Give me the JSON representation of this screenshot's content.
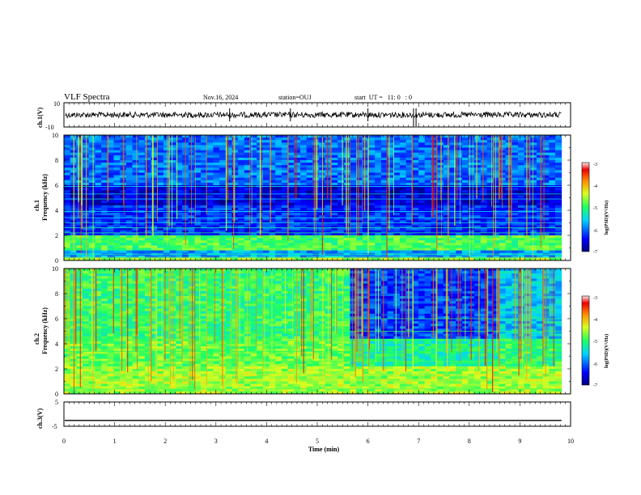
{
  "header": {
    "title": "VLF Spectra",
    "date": "Nov.16, 2024",
    "station": "station=OUJ",
    "start_ut": "start  UT =   11: 0   : 0"
  },
  "colorbar": {
    "label": "log(PSD)(V²/Hz)",
    "ticks": [
      "-3",
      "-4",
      "-5",
      "-6",
      "-7"
    ],
    "range": [
      -7,
      -3
    ]
  },
  "chart_data": [
    {
      "type": "line",
      "title": "",
      "ylabel": "ch.1(V)",
      "ylim": [
        -10,
        10
      ],
      "yticks": [
        "10",
        "-10"
      ],
      "xlim": [
        0,
        10
      ],
      "note": "noisy waveform centered near 0"
    },
    {
      "type": "heatmap",
      "ylabel_line1": "ch.1",
      "ylabel_line2": "Frequency (kHz)",
      "xlim": [
        0,
        10
      ],
      "ylim": [
        0,
        10
      ],
      "yticks": [
        "0",
        "2",
        "4",
        "6",
        "8",
        "10"
      ],
      "data_end_min": 9.82,
      "bands": [
        {
          "from": 0,
          "to": 0.3,
          "level": -4.6
        },
        {
          "from": 0.3,
          "to": 0.7,
          "level": -5.8
        },
        {
          "from": 0.7,
          "to": 2.0,
          "level": -4.9
        },
        {
          "from": 2.0,
          "to": 4.5,
          "level": -6.3
        },
        {
          "from": 4.5,
          "to": 6.0,
          "level": -6.6
        },
        {
          "from": 6.0,
          "to": 10.0,
          "level": -6.0
        }
      ]
    },
    {
      "type": "heatmap",
      "ylabel_line1": "ch.2",
      "ylabel_line2": "Frequency (kHz)",
      "xlim": [
        0,
        10
      ],
      "ylim": [
        0,
        10
      ],
      "yticks": [
        "0",
        "2",
        "4",
        "6",
        "8",
        "10"
      ],
      "data_end_min": 9.82,
      "segments": [
        {
          "t_from": 0,
          "t_to": 5.65,
          "level_low": -4.8,
          "level_high": -5.0
        },
        {
          "t_from": 5.65,
          "t_to": 8.65,
          "level_low": -5.2,
          "level_high": -6.2
        },
        {
          "t_from": 8.65,
          "t_to": 9.82,
          "level_low": -5.0,
          "level_high": -5.6
        }
      ]
    },
    {
      "type": "line",
      "ylabel": "ch.3(V)",
      "ylim": [
        -5,
        5
      ],
      "yticks": [
        "5",
        "-5"
      ],
      "xlim": [
        0,
        10
      ],
      "value": -2.6,
      "data_end_min": 9.82
    }
  ],
  "xaxis": {
    "label": "Time (min)",
    "ticks": [
      "0",
      "1",
      "2",
      "3",
      "4",
      "5",
      "6",
      "7",
      "8",
      "9",
      "10"
    ]
  }
}
